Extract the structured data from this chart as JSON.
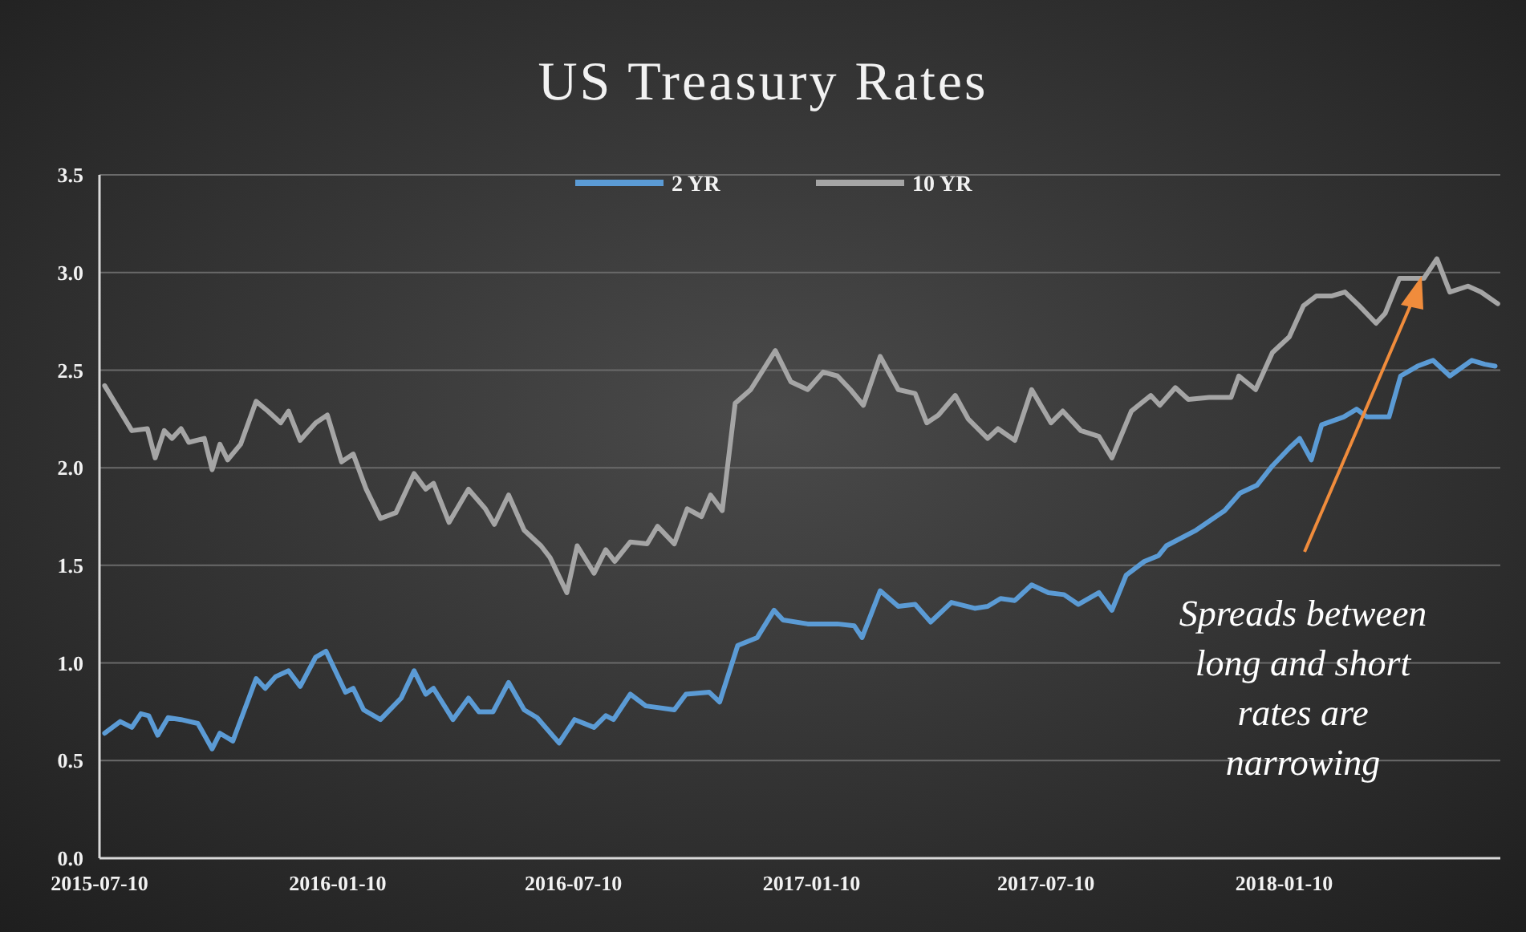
{
  "chart_data": {
    "type": "line",
    "title": "US Treasury Rates",
    "xlim": [
      "2015-07-10",
      "2018-06-26"
    ],
    "xticks": [
      "2015-07-10",
      "2016-01-10",
      "2016-07-10",
      "2017-01-10",
      "2017-07-10",
      "2018-01-10"
    ],
    "ylim": [
      0,
      3.5
    ],
    "yticks": [
      {
        "value": 0,
        "label": "0.0"
      },
      0.5,
      {
        "value": 1,
        "label": "1.0"
      },
      1.5,
      {
        "value": 2,
        "label": "2.0"
      },
      2.5,
      {
        "value": 3,
        "label": "3.0"
      },
      3.5
    ],
    "grid": "y",
    "legend": "top",
    "line_style": "solid",
    "annotations": [
      "Spreads between long and short rates are narrowing"
    ],
    "series": [
      {
        "name": "2 YR",
        "color": "#5b9bd5",
        "x": [
          "2015-07-14",
          "2015-07-26",
          "2015-08-04",
          "2015-08-11",
          "2015-08-17",
          "2015-08-24",
          "2015-09-01",
          "2015-09-11",
          "2015-09-24",
          "2015-10-05",
          "2015-10-11",
          "2015-10-21",
          "2015-11-08",
          "2015-11-15",
          "2015-11-23",
          "2015-12-03",
          "2015-12-12",
          "2015-12-24",
          "2016-01-01",
          "2016-01-16",
          "2016-01-22",
          "2016-01-30",
          "2016-02-12",
          "2016-02-28",
          "2016-03-09",
          "2016-03-18",
          "2016-03-24",
          "2016-04-08",
          "2016-04-20",
          "2016-04-28",
          "2016-05-09",
          "2016-05-21",
          "2016-06-02",
          "2016-06-12",
          "2016-06-29",
          "2016-07-11",
          "2016-07-26",
          "2016-08-04",
          "2016-08-10",
          "2016-08-23",
          "2016-09-04",
          "2016-09-26",
          "2016-10-05",
          "2016-10-23",
          "2016-10-31",
          "2016-11-14",
          "2016-11-29",
          "2016-12-12",
          "2016-12-19",
          "2017-01-07",
          "2017-01-30",
          "2017-02-12",
          "2017-02-18",
          "2017-03-04",
          "2017-03-18",
          "2017-03-31",
          "2017-04-12",
          "2017-04-28",
          "2017-05-16",
          "2017-05-26",
          "2017-06-05",
          "2017-06-16",
          "2017-06-29",
          "2017-07-12",
          "2017-07-24",
          "2017-08-04",
          "2017-08-20",
          "2017-08-30",
          "2017-09-10",
          "2017-09-24",
          "2017-10-05",
          "2017-10-11",
          "2017-11-03",
          "2017-11-25",
          "2017-12-07",
          "2017-12-20",
          "2018-01-01",
          "2018-01-14",
          "2018-01-22",
          "2018-01-31",
          "2018-02-08",
          "2018-02-25",
          "2018-03-07",
          "2018-03-15",
          "2018-04-01",
          "2018-04-10",
          "2018-04-23",
          "2018-05-05",
          "2018-05-18",
          "2018-06-04",
          "2018-06-14",
          "2018-06-22"
        ],
        "values": [
          0.64,
          0.7,
          0.67,
          0.74,
          0.73,
          0.63,
          0.72,
          0.71,
          0.69,
          0.56,
          0.64,
          0.6,
          0.92,
          0.87,
          0.93,
          0.96,
          0.88,
          1.03,
          1.06,
          0.85,
          0.87,
          0.76,
          0.71,
          0.82,
          0.96,
          0.84,
          0.87,
          0.71,
          0.82,
          0.75,
          0.75,
          0.9,
          0.76,
          0.72,
          0.59,
          0.71,
          0.67,
          0.73,
          0.71,
          0.84,
          0.78,
          0.76,
          0.84,
          0.85,
          0.8,
          1.09,
          1.13,
          1.27,
          1.22,
          1.2,
          1.2,
          1.19,
          1.13,
          1.37,
          1.29,
          1.3,
          1.21,
          1.31,
          1.28,
          1.29,
          1.33,
          1.32,
          1.4,
          1.36,
          1.35,
          1.3,
          1.36,
          1.27,
          1.45,
          1.52,
          1.55,
          1.6,
          1.68,
          1.78,
          1.87,
          1.91,
          2.01,
          2.1,
          2.15,
          2.04,
          2.22,
          2.26,
          2.3,
          2.26,
          2.26,
          2.47,
          2.52,
          2.55,
          2.47,
          2.55,
          2.53,
          2.52
        ]
      },
      {
        "name": "10 YR",
        "color": "#a5a5a5",
        "x": [
          "2015-07-14",
          "2015-08-04",
          "2015-08-16",
          "2015-08-22",
          "2015-08-29",
          "2015-09-04",
          "2015-09-11",
          "2015-09-17",
          "2015-09-29",
          "2015-10-05",
          "2015-10-11",
          "2015-10-17",
          "2015-10-27",
          "2015-11-08",
          "2015-11-17",
          "2015-11-27",
          "2015-12-03",
          "2015-12-12",
          "2015-12-24",
          "2016-01-02",
          "2016-01-13",
          "2016-01-22",
          "2016-02-01",
          "2016-02-12",
          "2016-02-24",
          "2016-03-09",
          "2016-03-18",
          "2016-03-24",
          "2016-04-05",
          "2016-04-20",
          "2016-05-03",
          "2016-05-10",
          "2016-05-21",
          "2016-06-02",
          "2016-06-15",
          "2016-06-22",
          "2016-07-05",
          "2016-07-13",
          "2016-07-26",
          "2016-08-04",
          "2016-08-11",
          "2016-08-23",
          "2016-09-05",
          "2016-09-13",
          "2016-09-26",
          "2016-10-06",
          "2016-10-17",
          "2016-10-24",
          "2016-11-02",
          "2016-11-12",
          "2016-11-24",
          "2016-12-13",
          "2016-12-25",
          "2017-01-07",
          "2017-01-19",
          "2017-01-30",
          "2017-02-09",
          "2017-02-19",
          "2017-03-04",
          "2017-03-18",
          "2017-03-31",
          "2017-04-09",
          "2017-04-18",
          "2017-05-01",
          "2017-05-11",
          "2017-05-26",
          "2017-06-03",
          "2017-06-16",
          "2017-06-29",
          "2017-07-14",
          "2017-07-23",
          "2017-08-06",
          "2017-08-20",
          "2017-08-30",
          "2017-09-14",
          "2017-09-29",
          "2017-10-06",
          "2017-10-18",
          "2017-10-28",
          "2017-11-13",
          "2017-11-30",
          "2017-12-06",
          "2017-12-19",
          "2018-01-01",
          "2018-01-14",
          "2018-01-25",
          "2018-02-04",
          "2018-02-16",
          "2018-02-26",
          "2018-03-09",
          "2018-03-22",
          "2018-03-29",
          "2018-04-09",
          "2018-04-28",
          "2018-05-08",
          "2018-05-18",
          "2018-06-01",
          "2018-06-11",
          "2018-06-24"
        ],
        "values": [
          2.42,
          2.19,
          2.2,
          2.05,
          2.19,
          2.15,
          2.2,
          2.13,
          2.15,
          1.99,
          2.12,
          2.04,
          2.12,
          2.34,
          2.29,
          2.23,
          2.29,
          2.14,
          2.23,
          2.27,
          2.03,
          2.07,
          1.89,
          1.74,
          1.77,
          1.97,
          1.89,
          1.92,
          1.72,
          1.89,
          1.79,
          1.71,
          1.86,
          1.68,
          1.6,
          1.54,
          1.36,
          1.6,
          1.46,
          1.58,
          1.52,
          1.62,
          1.61,
          1.7,
          1.61,
          1.79,
          1.75,
          1.86,
          1.78,
          2.33,
          2.4,
          2.6,
          2.44,
          2.4,
          2.49,
          2.47,
          2.4,
          2.32,
          2.57,
          2.4,
          2.38,
          2.23,
          2.27,
          2.37,
          2.25,
          2.15,
          2.2,
          2.14,
          2.4,
          2.23,
          2.29,
          2.19,
          2.16,
          2.05,
          2.29,
          2.37,
          2.32,
          2.41,
          2.35,
          2.36,
          2.36,
          2.47,
          2.4,
          2.59,
          2.67,
          2.83,
          2.88,
          2.88,
          2.9,
          2.83,
          2.74,
          2.79,
          2.97,
          2.97,
          3.07,
          2.9,
          2.93,
          2.9,
          2.84
        ]
      }
    ]
  }
}
